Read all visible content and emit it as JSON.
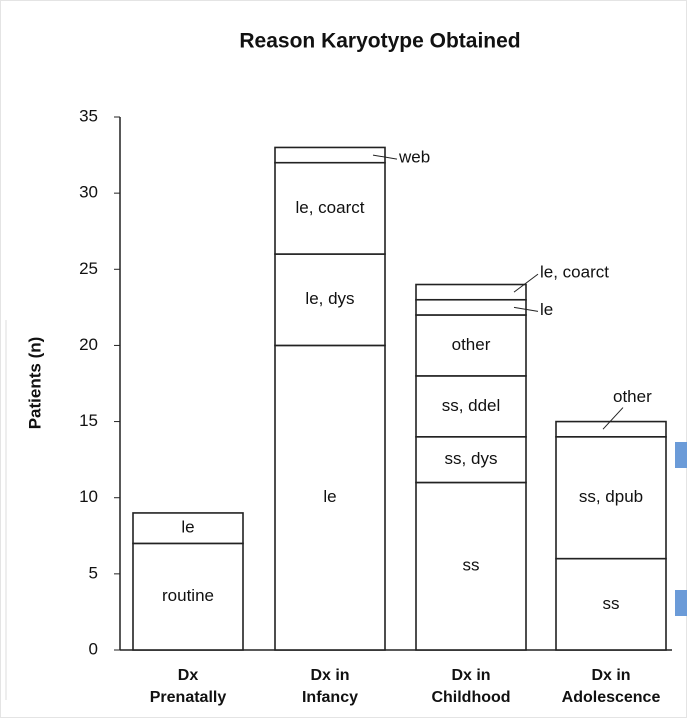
{
  "chart_data": {
    "type": "stacked-bar",
    "title": "Reason Karyotype Obtained",
    "y_label": "Patients (n)",
    "categories": [
      "Dx Prenatally",
      "Dx in Infancy",
      "Dx in Childhood",
      "Dx in Adolescence"
    ],
    "stacks": [
      {
        "segments": [
          {
            "label": "routine",
            "value": 7
          },
          {
            "label": "le",
            "value": 2
          }
        ]
      },
      {
        "segments": [
          {
            "label": "le",
            "value": 20
          },
          {
            "label": "le, dys",
            "value": 6
          },
          {
            "label": "le, coarct",
            "value": 6
          },
          {
            "label": "web",
            "value": 1
          }
        ]
      },
      {
        "segments": [
          {
            "label": "ss",
            "value": 11
          },
          {
            "label": "ss, dys",
            "value": 3
          },
          {
            "label": "ss, ddel",
            "value": 4
          },
          {
            "label": "other",
            "value": 4
          },
          {
            "label": "le",
            "value": 1
          },
          {
            "label": "le, coarct",
            "value": 1
          }
        ]
      },
      {
        "segments": [
          {
            "label": "ss",
            "value": 6
          },
          {
            "label": "ss, dpub",
            "value": 8
          },
          {
            "label": "other",
            "value": 1
          }
        ]
      }
    ],
    "ylim": [
      0,
      35
    ],
    "yticks": [
      0,
      5,
      10,
      15,
      20,
      25,
      30,
      35
    ],
    "grid": false
  }
}
